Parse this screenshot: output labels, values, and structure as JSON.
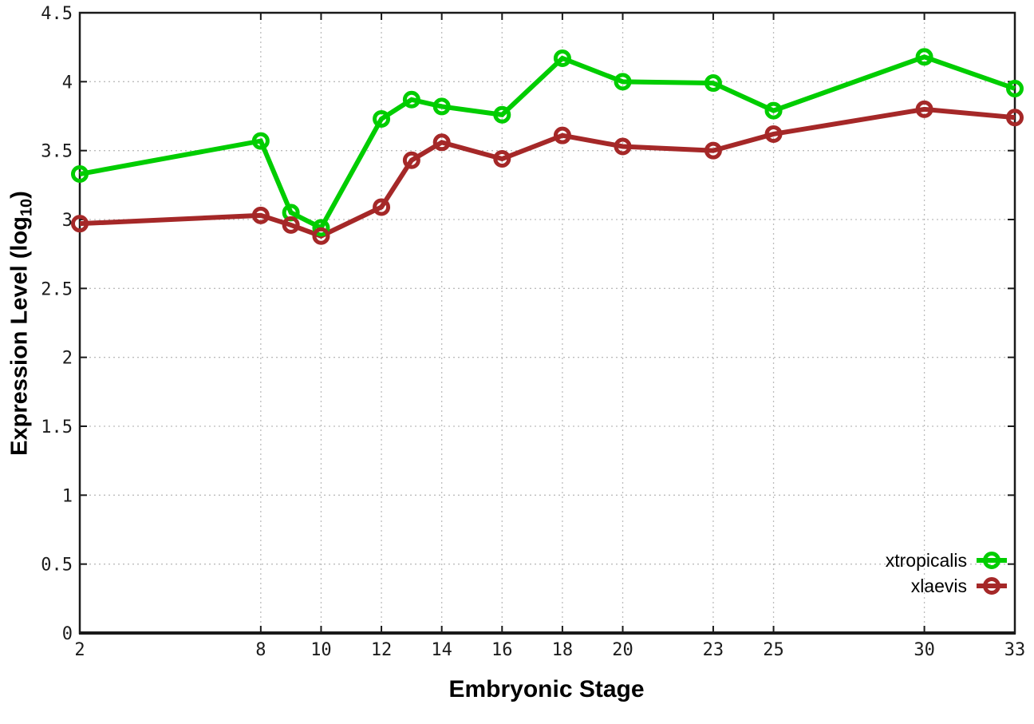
{
  "figure": {
    "xlabel": "Embryonic Stage",
    "ylabel_prefix": "Expression Level (log",
    "ylabel_sub": "10",
    "ylabel_suffix": ")"
  },
  "chart_data": {
    "type": "line",
    "title": "",
    "xlabel": "Embryonic Stage",
    "ylabel": "Expression Level (log10)",
    "x": [
      2,
      8,
      9,
      10,
      12,
      13,
      14,
      16,
      18,
      20,
      23,
      25,
      30,
      33
    ],
    "xlim": [
      2,
      33
    ],
    "ylim": [
      0,
      4.5
    ],
    "xtick_values": [
      2,
      8,
      10,
      12,
      14,
      16,
      18,
      20,
      23,
      25,
      30,
      33
    ],
    "xtick_labels": [
      "2",
      "8",
      "10",
      "12",
      "14",
      "16",
      "18",
      "20",
      "23",
      "25",
      "30",
      "33"
    ],
    "ytick_values": [
      0,
      0.5,
      1,
      1.5,
      2,
      2.5,
      3,
      3.5,
      4,
      4.5
    ],
    "ytick_labels": [
      "0",
      "0.5",
      "1",
      "1.5",
      "2",
      "2.5",
      "3",
      "3.5",
      "4",
      "4.5"
    ],
    "grid": true,
    "grid_style": "dotted",
    "legend_position": "bottom-right",
    "marker": "open-circle",
    "series": [
      {
        "name": "xtropicalis",
        "color": "#00cd00",
        "values": [
          3.33,
          3.57,
          3.05,
          2.94,
          3.73,
          3.87,
          3.82,
          3.76,
          4.17,
          4.0,
          3.99,
          3.79,
          4.18,
          3.95
        ]
      },
      {
        "name": "xlaevis",
        "color": "#a52828",
        "values": [
          2.97,
          3.03,
          2.96,
          2.88,
          3.09,
          3.43,
          3.56,
          3.44,
          3.61,
          3.53,
          3.5,
          3.62,
          3.8,
          3.74
        ]
      }
    ],
    "axis_color": "#1a1a1a",
    "grid_color": "#bcbcbc",
    "tick_label_color": "#1c1c1c"
  }
}
